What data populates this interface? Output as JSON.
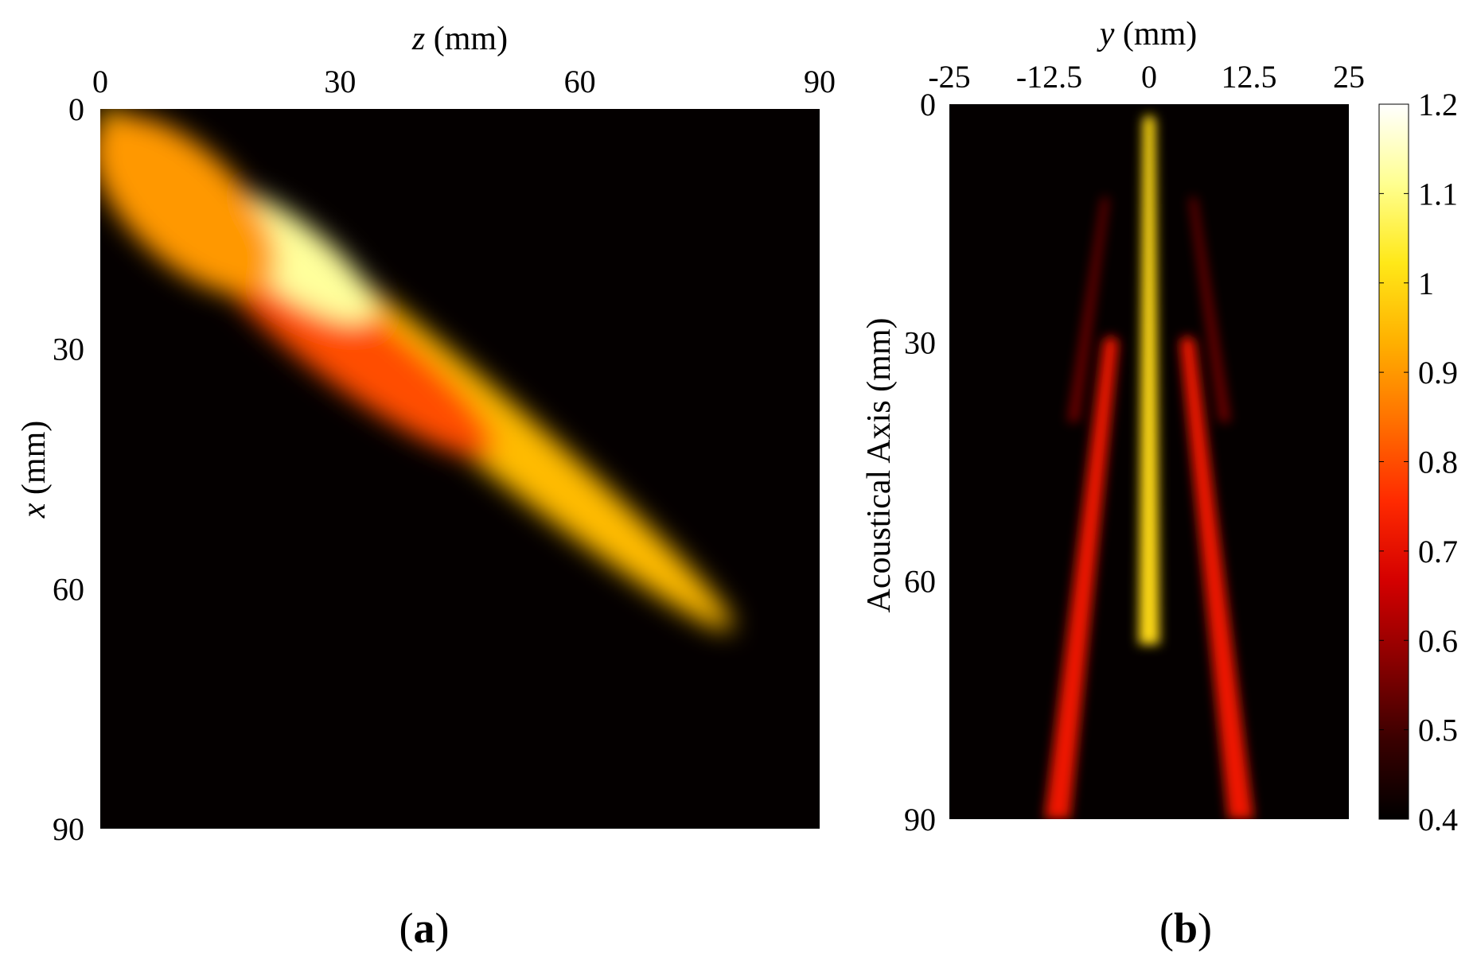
{
  "chart_data": [
    {
      "panel_label": "a",
      "type": "heatmap",
      "xlabel_var": "z",
      "xlabel_unit": " (mm)",
      "ylabel_var": "x",
      "ylabel_unit": " (mm)",
      "xlim": [
        0,
        90
      ],
      "ylim": [
        0,
        90
      ],
      "x_axis_position": "top",
      "y_axis_inverted": true,
      "x_ticks": [
        0,
        30,
        60,
        90
      ],
      "y_ticks": [
        0,
        30,
        60,
        90
      ],
      "beam_lobes": [
        {
          "z_start": 0,
          "x_start": 0,
          "z_end": 79,
          "x_end": 65,
          "width_mm": 9,
          "peak": 0.95
        },
        {
          "z_start": 13,
          "x_start": 16,
          "z_end": 49,
          "x_end": 43,
          "width_mm": 10,
          "peak": 0.8
        },
        {
          "z_start": 12,
          "x_start": 10,
          "z_end": 34,
          "x_end": 26,
          "width_mm": 9,
          "peak": 1.12
        },
        {
          "z_start": 0,
          "x_start": 2,
          "z_end": 21,
          "x_end": 22,
          "width_mm": 14,
          "peak": 0.9
        }
      ]
    },
    {
      "panel_label": "b",
      "type": "heatmap",
      "xlabel_var": "y",
      "xlabel_unit": " (mm)",
      "ylabel": "Acoustical Axis (mm)",
      "xlim": [
        -25,
        25
      ],
      "ylim": [
        0,
        90
      ],
      "x_axis_position": "top",
      "y_axis_inverted": true,
      "x_ticks": [
        "-25",
        "-12.5",
        "0",
        "12.5",
        "25"
      ],
      "y_ticks": [
        0,
        30,
        60,
        90
      ],
      "beam_lobes": [
        {
          "y_center_start": 0,
          "y_center_end": 0,
          "depth_start": 2,
          "depth_end": 68,
          "width_mm": 2.6,
          "peak": 1.0
        },
        {
          "y_center_start": -4.8,
          "y_center_end": -11.5,
          "depth_start": 30,
          "depth_end": 90,
          "width_mm": 3.2,
          "peak": 0.72
        },
        {
          "y_center_start": 4.8,
          "y_center_end": 11.5,
          "depth_start": 30,
          "depth_end": 90,
          "width_mm": 3.2,
          "peak": 0.72
        },
        {
          "y_center_start": -5.5,
          "y_center_end": -9.5,
          "depth_start": 12,
          "depth_end": 40,
          "width_mm": 1.4,
          "peak": 0.55
        },
        {
          "y_center_start": 5.5,
          "y_center_end": 9.5,
          "depth_start": 12,
          "depth_end": 40,
          "width_mm": 1.4,
          "peak": 0.55
        }
      ],
      "colorbar": {
        "min": 0.4,
        "max": 1.2,
        "ticks": [
          "1.2",
          "1.1",
          "1",
          "0.9",
          "0.8",
          "0.7",
          "0.6",
          "0.5",
          "0.4"
        ],
        "colormap": "hot",
        "colors": [
          "#000000",
          "#3a0000",
          "#8b0000",
          "#d40000",
          "#ff2a00",
          "#ff7000",
          "#ffb000",
          "#ffe818",
          "#ffff90",
          "#ffffff"
        ]
      }
    }
  ]
}
